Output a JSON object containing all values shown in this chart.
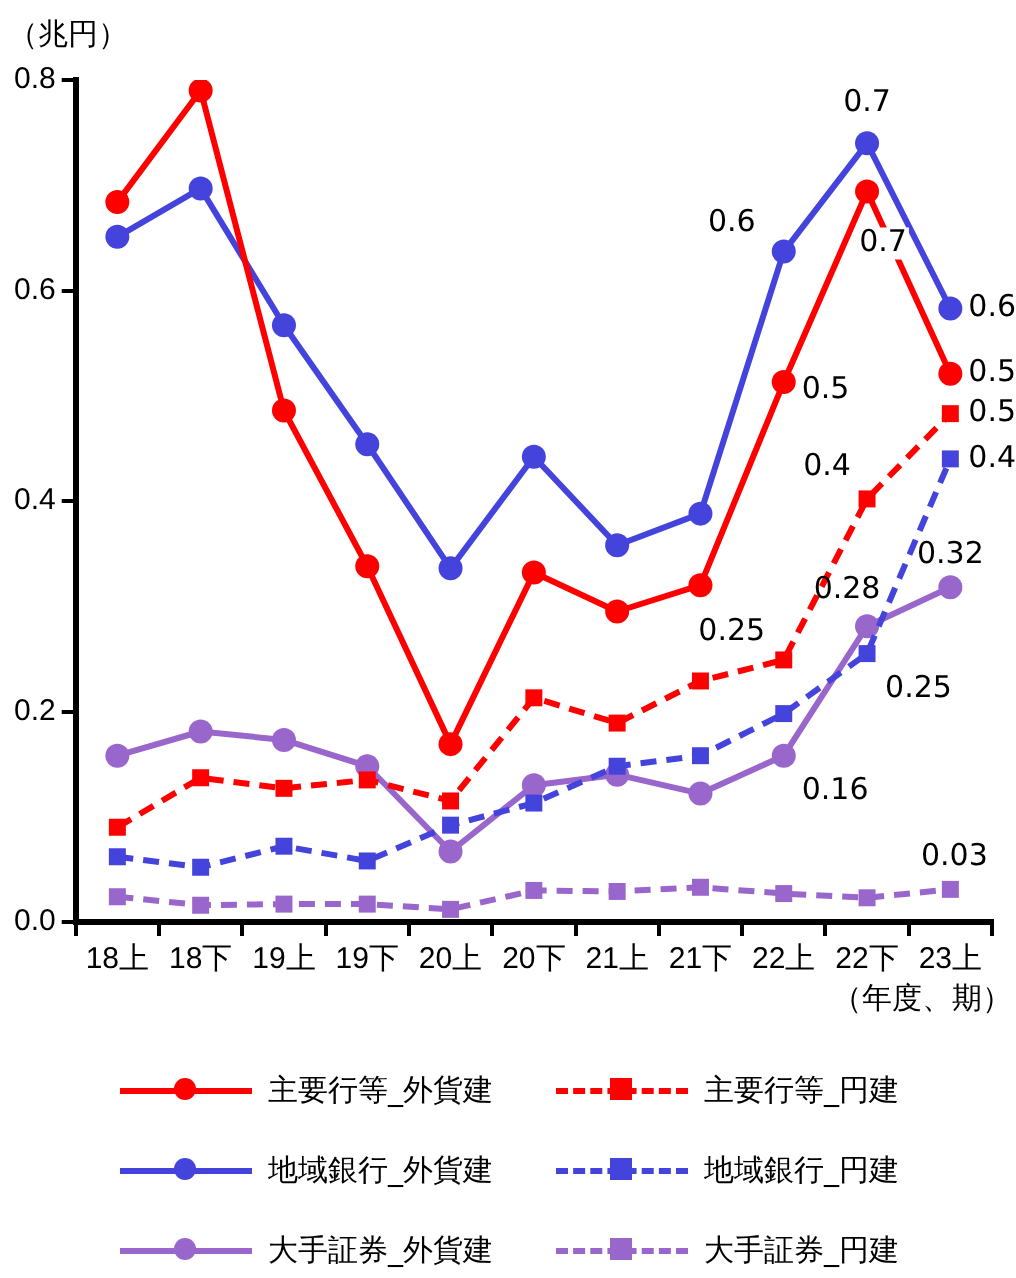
{
  "chart_data": {
    "type": "line",
    "ylabel": "（兆円）",
    "xlabel": "（年度、期）",
    "categories": [
      "18上",
      "18下",
      "19上",
      "19下",
      "20上",
      "20下",
      "21上",
      "21下",
      "22上",
      "22下",
      "23上"
    ],
    "ylim": [
      0,
      0.8
    ],
    "yticks": [
      {
        "value": 0,
        "label": "0.0"
      },
      0.2,
      0.4,
      0.6,
      0.8
    ],
    "grid": false,
    "legend": "bottom",
    "series": [
      {
        "name": "主要行等_外貨建",
        "color": "#ff0000",
        "marker": "circle",
        "line_style": "solid",
        "values": [
          0.684,
          0.79,
          0.486,
          0.338,
          0.169,
          0.332,
          0.295,
          0.32,
          0.513,
          0.694,
          0.521
        ],
        "value_labels": [
          null,
          null,
          null,
          null,
          null,
          null,
          null,
          null,
          "0.5",
          "0.7",
          "0.5"
        ]
      },
      {
        "name": "主要行等_円建",
        "color": "#ff0000",
        "marker": "square",
        "line_style": "dashed",
        "values": [
          0.09,
          0.137,
          0.127,
          0.135,
          0.115,
          0.213,
          0.189,
          0.229,
          0.249,
          0.402,
          0.483
        ],
        "value_labels": [
          null,
          null,
          null,
          null,
          null,
          null,
          null,
          null,
          "0.25",
          "0.4",
          "0.5"
        ]
      },
      {
        "name": "地域銀行_外貨建",
        "color": "#4444dd",
        "marker": "circle",
        "line_style": "solid",
        "values": [
          0.651,
          0.697,
          0.567,
          0.454,
          0.336,
          0.442,
          0.358,
          0.388,
          0.637,
          0.74,
          0.583
        ],
        "value_labels": [
          null,
          null,
          null,
          null,
          null,
          null,
          null,
          null,
          "0.6",
          "0.7",
          "0.6"
        ]
      },
      {
        "name": "地域銀行_円建",
        "color": "#4444dd",
        "marker": "square",
        "line_style": "dashed",
        "values": [
          0.062,
          0.052,
          0.072,
          0.058,
          0.092,
          0.113,
          0.148,
          0.158,
          0.198,
          0.255,
          0.44
        ],
        "value_labels": [
          null,
          null,
          null,
          null,
          null,
          null,
          null,
          null,
          null,
          "0.25",
          "0.4"
        ]
      },
      {
        "name": "大手証券_外貨建",
        "color": "#9966cc",
        "marker": "circle",
        "line_style": "solid",
        "values": [
          0.158,
          0.181,
          0.173,
          0.148,
          0.067,
          0.13,
          0.14,
          0.122,
          0.158,
          0.281,
          0.318
        ],
        "value_labels": [
          null,
          null,
          null,
          null,
          null,
          null,
          null,
          null,
          "0.16",
          "0.28",
          "0.32"
        ]
      },
      {
        "name": "大手証券_円建",
        "color": "#9966cc",
        "marker": "square",
        "line_style": "dashed",
        "values": [
          0.024,
          0.016,
          0.017,
          0.017,
          0.012,
          0.03,
          0.029,
          0.033,
          0.027,
          0.023,
          0.031
        ],
        "value_labels": [
          null,
          null,
          null,
          null,
          null,
          null,
          null,
          null,
          null,
          null,
          "0.03"
        ]
      }
    ]
  }
}
